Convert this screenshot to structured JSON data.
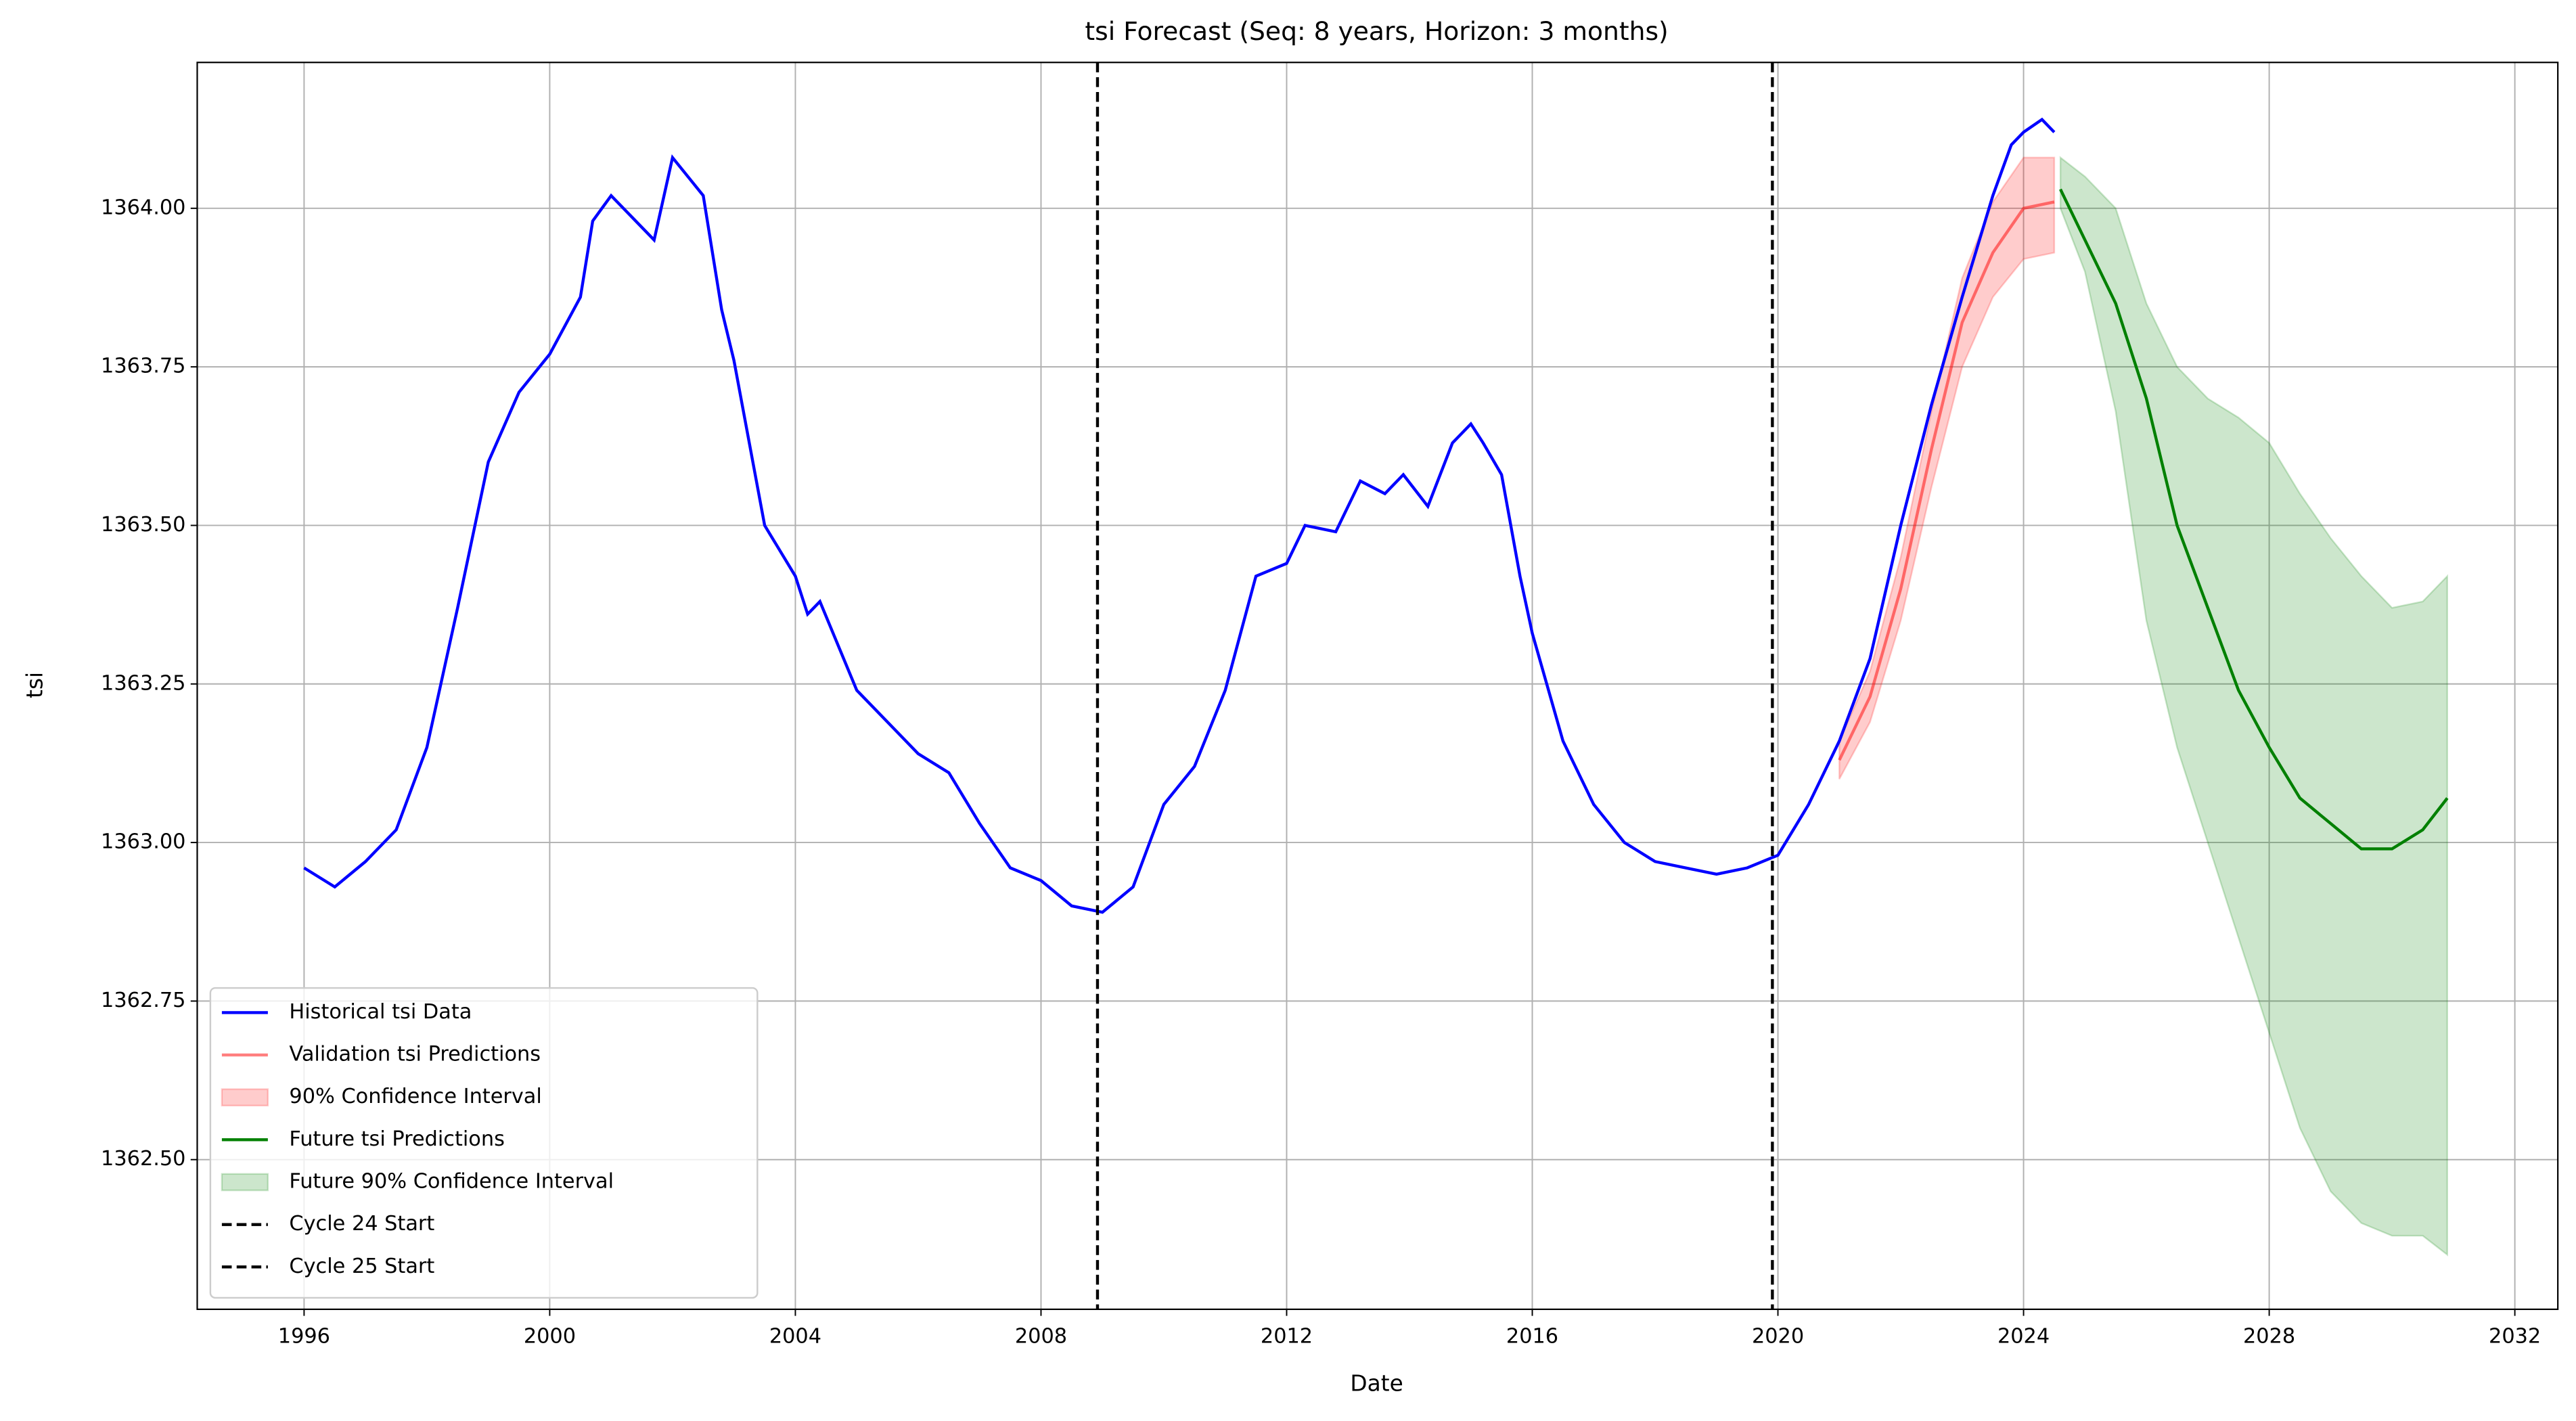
{
  "chart_data": {
    "type": "line",
    "title": "tsi Forecast (Seq: 8 years, Horizon: 3 months)",
    "x_label": "Date",
    "y_label": "tsi",
    "xlim": [
      1994.26,
      2032.7
    ],
    "ylim": [
      1362.264,
      1364.23
    ],
    "xticks": [
      1996,
      2000,
      2004,
      2008,
      2012,
      2016,
      2020,
      2024,
      2028,
      2032
    ],
    "yticks": [
      {
        "value": 1362.5,
        "label": "1362.50"
      },
      {
        "value": 1362.75,
        "label": "1362.75"
      },
      {
        "value": 1363,
        "label": "1363.00"
      },
      {
        "value": 1363.25,
        "label": "1363.25"
      },
      {
        "value": 1363.5,
        "label": "1363.50"
      },
      {
        "value": 1363.75,
        "label": "1363.75"
      },
      {
        "value": 1364,
        "label": "1364.00"
      }
    ],
    "grid": true,
    "legend": "lower left",
    "series": [
      {
        "name": "Historical tsi Data",
        "type": "line",
        "color": "#0000ff",
        "alpha": 1,
        "x": [
          1996.0,
          1996.5,
          1997.0,
          1997.5,
          1998.0,
          1998.5,
          1999.0,
          1999.5,
          2000.0,
          2000.5,
          2000.7,
          2001.0,
          2001.5,
          2001.7,
          2002.0,
          2002.5,
          2002.8,
          2003.0,
          2003.5,
          2004.0,
          2004.2,
          2004.4,
          2005.0,
          2005.5,
          2006.0,
          2006.5,
          2007.0,
          2007.5,
          2008.0,
          2008.5,
          2009.0,
          2009.5,
          2010.0,
          2010.5,
          2011.0,
          2011.5,
          2012.0,
          2012.3,
          2012.8,
          2013.2,
          2013.6,
          2013.9,
          2014.3,
          2014.7,
          2015.0,
          2015.2,
          2015.5,
          2015.8,
          2016.0,
          2016.5,
          2017.0,
          2017.5,
          2018.0,
          2018.5,
          2019.0,
          2019.5,
          2020.0,
          2020.5,
          2021.0,
          2021.5,
          2022.0,
          2022.5,
          2023.0,
          2023.5,
          2023.8,
          2024.0,
          2024.3,
          2024.5
        ],
        "values": [
          1362.96,
          1362.93,
          1362.97,
          1363.02,
          1363.15,
          1363.37,
          1363.6,
          1363.71,
          1363.77,
          1363.86,
          1363.98,
          1364.02,
          1363.97,
          1363.95,
          1364.08,
          1364.02,
          1363.84,
          1363.76,
          1363.5,
          1363.42,
          1363.36,
          1363.38,
          1363.24,
          1363.19,
          1363.14,
          1363.11,
          1363.03,
          1362.96,
          1362.94,
          1362.9,
          1362.89,
          1362.93,
          1363.06,
          1363.12,
          1363.24,
          1363.42,
          1363.44,
          1363.5,
          1363.49,
          1363.57,
          1363.55,
          1363.58,
          1363.53,
          1363.63,
          1363.66,
          1363.63,
          1363.58,
          1363.42,
          1363.33,
          1363.16,
          1363.06,
          1363.0,
          1362.97,
          1362.96,
          1362.95,
          1362.96,
          1362.98,
          1363.06,
          1363.16,
          1363.29,
          1363.5,
          1363.69,
          1363.86,
          1364.02,
          1364.1,
          1364.12,
          1364.14,
          1364.12
        ]
      },
      {
        "name": "Validation tsi Predictions",
        "type": "line",
        "color": "#ff0000",
        "alpha": 0.5,
        "x": [
          2021.0,
          2021.5,
          2022.0,
          2022.5,
          2023.0,
          2023.5,
          2024.0,
          2024.5
        ],
        "values": [
          1363.13,
          1363.23,
          1363.4,
          1363.62,
          1363.82,
          1363.93,
          1364.0,
          1364.01
        ]
      },
      {
        "name": "90% Confidence Interval",
        "type": "band",
        "color": "#ff0000",
        "alpha": 0.2,
        "x": [
          2021.0,
          2021.5,
          2022.0,
          2022.5,
          2023.0,
          2023.5,
          2024.0,
          2024.5
        ],
        "lower": [
          1363.1,
          1363.19,
          1363.35,
          1363.56,
          1363.75,
          1363.86,
          1363.92,
          1363.93
        ],
        "upper": [
          1363.16,
          1363.27,
          1363.45,
          1363.68,
          1363.89,
          1364.01,
          1364.08,
          1364.08
        ]
      },
      {
        "name": "Future tsi Predictions",
        "type": "line",
        "color": "#008000",
        "alpha": 1,
        "x": [
          2024.6,
          2025.0,
          2025.5,
          2026.0,
          2026.5,
          2027.0,
          2027.5,
          2028.0,
          2028.5,
          2029.0,
          2029.5,
          2030.0,
          2030.5,
          2030.9
        ],
        "values": [
          1364.03,
          1363.95,
          1363.85,
          1363.7,
          1363.5,
          1363.37,
          1363.24,
          1363.15,
          1363.07,
          1363.03,
          1362.99,
          1362.99,
          1363.02,
          1363.07
        ]
      },
      {
        "name": "Future 90% Confidence Interval",
        "type": "band",
        "color": "#008000",
        "alpha": 0.2,
        "x": [
          2024.6,
          2025.0,
          2025.5,
          2026.0,
          2026.5,
          2027.0,
          2027.5,
          2028.0,
          2028.5,
          2029.0,
          2029.5,
          2030.0,
          2030.5,
          2030.9
        ],
        "lower": [
          1364.0,
          1363.9,
          1363.68,
          1363.35,
          1363.15,
          1363.0,
          1362.85,
          1362.7,
          1362.55,
          1362.45,
          1362.4,
          1362.38,
          1362.38,
          1362.35
        ],
        "upper": [
          1364.08,
          1364.05,
          1364.0,
          1363.85,
          1363.75,
          1363.7,
          1363.67,
          1363.63,
          1363.55,
          1363.48,
          1363.42,
          1363.37,
          1363.38,
          1363.42
        ]
      },
      {
        "name": "Cycle 24 Start",
        "type": "vline",
        "color": "#000000",
        "alpha": 1,
        "x": 2008.92
      },
      {
        "name": "Cycle 25 Start",
        "type": "vline",
        "color": "#000000",
        "alpha": 1,
        "x": 2019.91
      }
    ]
  }
}
